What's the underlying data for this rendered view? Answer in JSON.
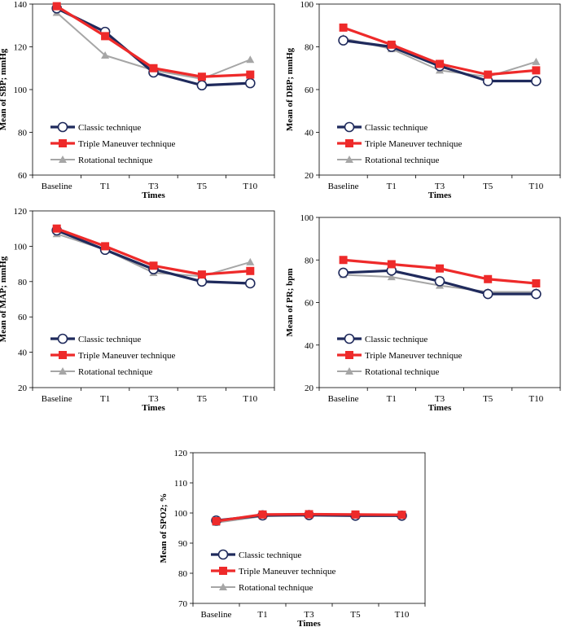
{
  "colors": {
    "classic": "#1f2a5c",
    "triple": "#ee2a2a",
    "rotational": "#a6a6a6"
  },
  "legend": [
    "Classic technique",
    "Triple Maneuver technique",
    "Rotational technique"
  ],
  "chart_data": [
    {
      "type": "line",
      "ylabel": "Mean of SBP; mmHg",
      "xlabel": "Times",
      "categories": [
        "Baseline",
        "T1",
        "T3",
        "T5",
        "T10"
      ],
      "ylim": [
        60,
        140
      ],
      "yticks": [
        60,
        80,
        100,
        120,
        140
      ],
      "legend_labels": [
        "Classic technique",
        "Triple Maneuver technique",
        "Rotational technique"
      ],
      "series": [
        {
          "name": "Classic technique",
          "values": [
            138,
            127,
            108,
            102,
            103
          ]
        },
        {
          "name": "Triple Maneuver technique",
          "values": [
            139,
            125,
            110,
            106,
            107
          ]
        },
        {
          "name": "Rotational technique",
          "values": [
            136,
            116,
            109,
            105,
            114
          ]
        }
      ]
    },
    {
      "type": "line",
      "ylabel": "Mean of DBP; mmHg",
      "xlabel": "Times",
      "categories": [
        "Baseline",
        "T1",
        "T3",
        "T5",
        "T10"
      ],
      "ylim": [
        20,
        100
      ],
      "yticks": [
        20,
        40,
        60,
        80,
        100
      ],
      "legend_labels": [
        "Classic technique",
        "Triple Maneuver technique",
        "Rotational technique"
      ],
      "series": [
        {
          "name": "Classic technique",
          "values": [
            83,
            80,
            71,
            64,
            64
          ]
        },
        {
          "name": "Triple Maneuver technique",
          "values": [
            89,
            81,
            72,
            67,
            69
          ]
        },
        {
          "name": "Rotational technique",
          "values": [
            84,
            79,
            69,
            66,
            73
          ]
        }
      ]
    },
    {
      "type": "line",
      "ylabel": "Mean of MAP; mmHg",
      "xlabel": "Times",
      "categories": [
        "Baseline",
        "T1",
        "T3",
        "T5",
        "T10"
      ],
      "ylim": [
        20,
        120
      ],
      "yticks": [
        20,
        40,
        60,
        80,
        100,
        120
      ],
      "legend_labels": [
        "Classic technique",
        "Triple Maneuver technique",
        "Rotational technique"
      ],
      "series": [
        {
          "name": "Classic technique",
          "values": [
            109,
            98,
            87,
            80,
            79
          ]
        },
        {
          "name": "Triple Maneuver technique",
          "values": [
            110,
            100,
            89,
            84,
            86
          ]
        },
        {
          "name": "Rotational technique",
          "values": [
            107,
            98,
            85,
            83,
            91
          ]
        }
      ]
    },
    {
      "type": "line",
      "ylabel": "Mean of PR; bpm",
      "xlabel": "Times",
      "categories": [
        "Baseline",
        "T1",
        "T3",
        "T5",
        "T10"
      ],
      "ylim": [
        20,
        100
      ],
      "yticks": [
        20,
        40,
        60,
        80,
        100
      ],
      "legend_labels": [
        "Classic technique",
        "Triple Maneuver technique",
        "Rotational technique"
      ],
      "series": [
        {
          "name": "Classic technique",
          "values": [
            74,
            75,
            70,
            64,
            64
          ]
        },
        {
          "name": "Triple Maneuver technique",
          "values": [
            80,
            78,
            76,
            71,
            69
          ]
        },
        {
          "name": "Rotational technique",
          "values": [
            73,
            72,
            68,
            65,
            65
          ]
        }
      ]
    },
    {
      "type": "line",
      "ylabel": "Mean of SPO2; %",
      "xlabel": "Times",
      "categories": [
        "Baseline",
        "T1",
        "T3",
        "T5",
        "T10"
      ],
      "ylim": [
        70,
        120
      ],
      "yticks": [
        70,
        80,
        90,
        100,
        110,
        120
      ],
      "legend_labels": [
        "Classic technique",
        "Triple Maneuver technique",
        "Rotational technique"
      ],
      "series": [
        {
          "name": "Classic technique",
          "values": [
            97.5,
            99.2,
            99.3,
            99.1,
            99.1
          ]
        },
        {
          "name": "Triple Maneuver technique",
          "values": [
            97.3,
            99.5,
            99.6,
            99.5,
            99.4
          ]
        },
        {
          "name": "Rotational technique",
          "values": [
            96.8,
            98.9,
            99.3,
            99.5,
            99.5
          ]
        }
      ]
    }
  ]
}
